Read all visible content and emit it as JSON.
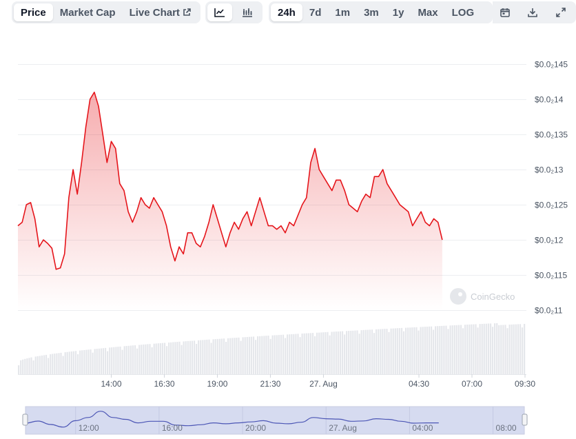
{
  "tabs": {
    "price": "Price",
    "market_cap": "Market Cap",
    "live_chart": "Live Chart"
  },
  "chart_style": {
    "line_icon": "line-chart-icon",
    "candle_icon": "candlestick-chart-icon"
  },
  "ranges": [
    "24h",
    "7d",
    "1m",
    "3m",
    "1y",
    "Max",
    "LOG"
  ],
  "active_range": "24h",
  "tool_icons": [
    "calendar-icon",
    "download-icon",
    "expand-icon"
  ],
  "watermark": "CoinGecko",
  "colors": {
    "line": "#e5141a",
    "volume": "#e5e7eb",
    "navigator_fill": "#d6dbf0",
    "navigator_line": "#4b55b5"
  },
  "chart_data": {
    "type": "line",
    "y_tick_labels": [
      "$0.0₂145",
      "$0.0₂14",
      "$0.0₂135",
      "$0.0₂13",
      "$0.0₂125",
      "$0.0₂12",
      "$0.0₂115",
      "$0.0₂11"
    ],
    "y_ticks": [
      0.00145,
      0.0014,
      0.00135,
      0.0013,
      0.00125,
      0.0012,
      0.00115,
      0.0011
    ],
    "ylim": [
      0.0011,
      0.00145
    ],
    "x_tick_labels": [
      "14:00",
      "16:30",
      "19:00",
      "21:30",
      "27. Aug",
      "04:30",
      "07:00",
      "09:30"
    ],
    "x_tick_hours": [
      14,
      16.5,
      19,
      21.5,
      24,
      28.5,
      31,
      33.5
    ],
    "xlim_hours": [
      9.6,
      33.5
    ],
    "series": [
      {
        "values": [
          [
            9.6,
            0.00122
          ],
          [
            9.8,
            0.001225
          ],
          [
            10.0,
            0.00125
          ],
          [
            10.2,
            0.001253
          ],
          [
            10.4,
            0.00123
          ],
          [
            10.6,
            0.00119
          ],
          [
            10.8,
            0.0012
          ],
          [
            11.0,
            0.001195
          ],
          [
            11.2,
            0.001188
          ],
          [
            11.4,
            0.001158
          ],
          [
            11.6,
            0.00116
          ],
          [
            11.8,
            0.00118
          ],
          [
            12.0,
            0.00126
          ],
          [
            12.2,
            0.0013
          ],
          [
            12.4,
            0.001265
          ],
          [
            12.6,
            0.00131
          ],
          [
            12.8,
            0.00136
          ],
          [
            13.0,
            0.0014
          ],
          [
            13.2,
            0.00141
          ],
          [
            13.4,
            0.00139
          ],
          [
            13.6,
            0.00135
          ],
          [
            13.8,
            0.00131
          ],
          [
            14.0,
            0.00134
          ],
          [
            14.2,
            0.00133
          ],
          [
            14.4,
            0.00128
          ],
          [
            14.6,
            0.00127
          ],
          [
            14.8,
            0.00124
          ],
          [
            15.0,
            0.001225
          ],
          [
            15.2,
            0.00124
          ],
          [
            15.4,
            0.00126
          ],
          [
            15.6,
            0.00125
          ],
          [
            15.8,
            0.001245
          ],
          [
            16.0,
            0.00126
          ],
          [
            16.2,
            0.00125
          ],
          [
            16.4,
            0.00124
          ],
          [
            16.6,
            0.00122
          ],
          [
            16.8,
            0.00119
          ],
          [
            17.0,
            0.00117
          ],
          [
            17.2,
            0.00119
          ],
          [
            17.4,
            0.00118
          ],
          [
            17.6,
            0.00121
          ],
          [
            17.8,
            0.00121
          ],
          [
            18.0,
            0.001195
          ],
          [
            18.2,
            0.00119
          ],
          [
            18.4,
            0.001205
          ],
          [
            18.6,
            0.001225
          ],
          [
            18.8,
            0.00125
          ],
          [
            19.0,
            0.00123
          ],
          [
            19.2,
            0.00121
          ],
          [
            19.4,
            0.00119
          ],
          [
            19.6,
            0.00121
          ],
          [
            19.8,
            0.001225
          ],
          [
            20.0,
            0.001215
          ],
          [
            20.2,
            0.00123
          ],
          [
            20.4,
            0.00124
          ],
          [
            20.6,
            0.00122
          ],
          [
            20.8,
            0.00124
          ],
          [
            21.0,
            0.00126
          ],
          [
            21.2,
            0.00124
          ],
          [
            21.4,
            0.00122
          ],
          [
            21.6,
            0.00122
          ],
          [
            21.8,
            0.001215
          ],
          [
            22.0,
            0.00122
          ],
          [
            22.2,
            0.00121
          ],
          [
            22.4,
            0.001225
          ],
          [
            22.6,
            0.00122
          ],
          [
            22.8,
            0.001235
          ],
          [
            23.0,
            0.00125
          ],
          [
            23.2,
            0.00126
          ],
          [
            23.4,
            0.00131
          ],
          [
            23.6,
            0.00133
          ],
          [
            23.8,
            0.0013
          ],
          [
            24.0,
            0.00129
          ],
          [
            24.2,
            0.00128
          ],
          [
            24.4,
            0.00127
          ],
          [
            24.6,
            0.001285
          ],
          [
            24.8,
            0.001285
          ],
          [
            25.0,
            0.00127
          ],
          [
            25.2,
            0.00125
          ],
          [
            25.4,
            0.001245
          ],
          [
            25.6,
            0.00124
          ],
          [
            25.8,
            0.001255
          ],
          [
            26.0,
            0.001265
          ],
          [
            26.2,
            0.00126
          ],
          [
            26.4,
            0.00129
          ],
          [
            26.6,
            0.00129
          ],
          [
            26.8,
            0.0013
          ],
          [
            27.0,
            0.00128
          ],
          [
            27.2,
            0.00127
          ],
          [
            27.4,
            0.00126
          ],
          [
            27.6,
            0.00125
          ],
          [
            27.8,
            0.001245
          ],
          [
            28.0,
            0.00124
          ],
          [
            28.2,
            0.00122
          ],
          [
            28.4,
            0.00123
          ],
          [
            28.6,
            0.00124
          ],
          [
            28.8,
            0.001225
          ],
          [
            29.0,
            0.00122
          ],
          [
            29.2,
            0.00123
          ],
          [
            29.4,
            0.001225
          ],
          [
            29.6,
            0.0012
          ]
        ]
      }
    ],
    "volume": "gradually rising bars, unlabeled"
  },
  "navigator": {
    "labels": [
      "12:00",
      "16:00",
      "20:00",
      "27. Aug",
      "04:00",
      "08:00"
    ],
    "label_hours": [
      12,
      16,
      20,
      24,
      28,
      32
    ],
    "xlim_hours": [
      9.6,
      33.5
    ]
  }
}
